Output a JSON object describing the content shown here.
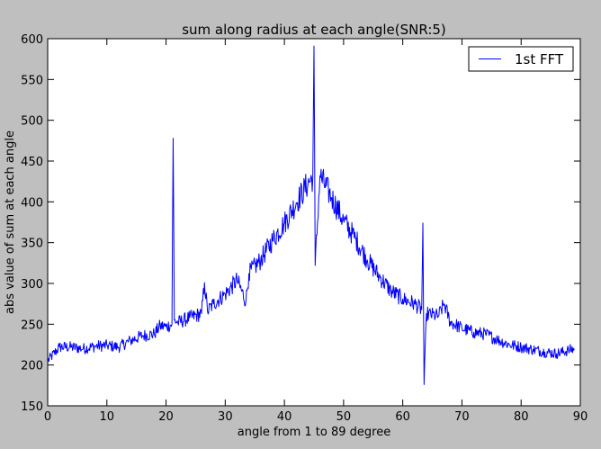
{
  "chart_data": {
    "type": "line",
    "title": "sum along radius at each angle(SNR:5)",
    "xlabel": "angle from 1 to 89 degree",
    "ylabel": "abs value of sum at each angle",
    "xlim": [
      0,
      90
    ],
    "ylim": [
      150,
      600
    ],
    "xticks": [
      0,
      10,
      20,
      30,
      40,
      50,
      60,
      70,
      80,
      90
    ],
    "yticks": [
      150,
      200,
      250,
      300,
      350,
      400,
      450,
      500,
      550,
      600
    ],
    "grid": false,
    "legend_position": "top-right",
    "series": [
      {
        "name": "1st FFT",
        "color": "#0000ff",
        "x": [
          0,
          2,
          4,
          6,
          8,
          10,
          12,
          14,
          16,
          18,
          19,
          20,
          21,
          21.2,
          21.4,
          22,
          24,
          26,
          26.5,
          27,
          28,
          30,
          32,
          33.5,
          34,
          36,
          38,
          40,
          42,
          44,
          44.8,
          45,
          45.2,
          46,
          48,
          50,
          52,
          54,
          56,
          58,
          60,
          62,
          63.2,
          63.4,
          63.6,
          64,
          66,
          67,
          68,
          70,
          72,
          74,
          76,
          78,
          80,
          82,
          84,
          86,
          88,
          89
        ],
        "y": [
          205,
          222,
          222,
          220,
          223,
          224,
          222,
          230,
          236,
          238,
          248,
          247,
          250,
          478,
          255,
          252,
          258,
          263,
          301,
          266,
          275,
          287,
          304,
          278,
          312,
          329,
          353,
          374,
          399,
          423,
          430,
          591,
          322,
          432,
          405,
          377,
          355,
          329,
          309,
          291,
          281,
          275,
          268,
          374,
          176,
          263,
          260,
          275,
          253,
          245,
          240,
          238,
          231,
          225,
          222,
          219,
          216,
          214,
          218,
          220
        ]
      }
    ]
  }
}
